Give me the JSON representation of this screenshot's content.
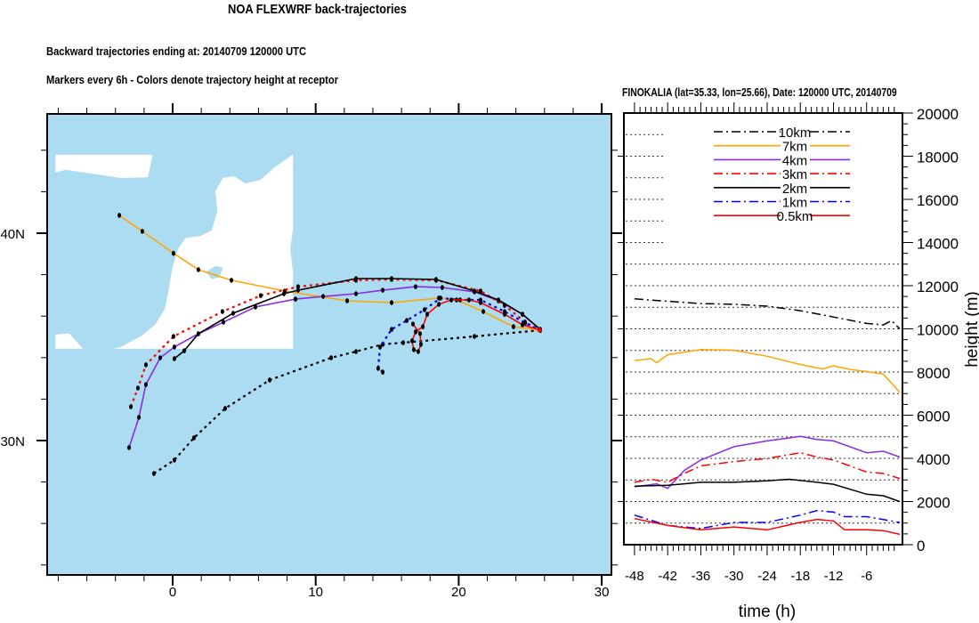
{
  "header": {
    "title": "NOA FLEXWRF back-trajectories",
    "subtitle1": "Backward trajectories ending at: 20140709  120000 UTC",
    "subtitle2": "Markers every 6h - Colors denote trajectory height at receptor"
  },
  "chart_data": [
    {
      "type": "line",
      "subtype": "map-trajectories",
      "title": "NOA FLEXWRF back-trajectories",
      "x_ticks": [
        "0",
        "10",
        "20",
        "30"
      ],
      "x_tick_values": [
        0,
        10,
        20,
        30
      ],
      "y_ticks": [
        "40N",
        "30N"
      ],
      "y_tick_values": [
        40,
        30
      ],
      "xlim": [
        -9,
        30.7
      ],
      "ylim": [
        23.5,
        45.8
      ],
      "receptor": {
        "lon": 25.66,
        "lat": 35.33
      },
      "colors": {
        "sea": "#acdcf1",
        "land": "#ffffff"
      },
      "series": [
        {
          "name": "10km",
          "color": "#000000",
          "style": "dotted",
          "lon": [
            -1.31,
            0.12,
            1.49,
            3.67,
            6.78,
            11.08,
            12.82,
            14.69,
            16.12,
            21.1,
            25.7
          ],
          "lat": [
            28.41,
            29.06,
            30.13,
            31.55,
            32.92,
            33.99,
            34.29,
            34.64,
            34.72,
            35.02,
            35.32
          ]
        },
        {
          "name": "7km",
          "color": "#ffa500",
          "style": "solid",
          "lon": [
            -3.73,
            -2.12,
            0.06,
            1.8,
            4.11,
            7.84,
            12.2,
            15.31,
            18.61,
            19.85,
            21.72,
            23.83,
            25.7
          ],
          "lat": [
            40.86,
            40.09,
            39.03,
            38.24,
            37.73,
            37.21,
            36.74,
            36.65,
            36.87,
            36.78,
            36.22,
            35.49,
            35.32
          ]
        },
        {
          "name": "4km",
          "color": "#8a2be2",
          "style": "solid",
          "lon": [
            -3.05,
            -2.36,
            -1.87,
            -0.87,
            0.12,
            1.8,
            3.55,
            5.79,
            8.59,
            10.52,
            12.82,
            14.69,
            16.99,
            18.85,
            21.1,
            22.78,
            24.46,
            25.7
          ],
          "lat": [
            29.66,
            31.12,
            32.7,
            33.99,
            34.51,
            35.15,
            35.71,
            36.44,
            36.82,
            36.95,
            37.08,
            37.25,
            37.42,
            37.38,
            37.17,
            36.74,
            36.09,
            35.36
          ]
        },
        {
          "name": "3km",
          "color": "#ff0000",
          "style": "dotted",
          "lon": [
            -2.92,
            -2.43,
            -1.87,
            0.06,
            3.48,
            6.16,
            8.77,
            12.82,
            15.31,
            18.42,
            21.53,
            23.21,
            24.64,
            25.7
          ],
          "lat": [
            31.63,
            32.53,
            33.65,
            35.02,
            36.22,
            36.99,
            37.42,
            37.73,
            37.77,
            37.73,
            37.21,
            36.52,
            35.71,
            35.32
          ]
        },
        {
          "name": "2km",
          "color": "#000000",
          "style": "solid",
          "lon": [
            0.12,
            0.81,
            1.8,
            4.23,
            7.78,
            8.77,
            12.82,
            15.31,
            18.42,
            21.1,
            22.78,
            24.46,
            25.7
          ],
          "lat": [
            33.95,
            34.33,
            35.15,
            36.14,
            37.08,
            37.25,
            37.81,
            37.81,
            37.77,
            37.21,
            36.78,
            36.09,
            35.36
          ]
        },
        {
          "name": "1km",
          "color": "#0000ff",
          "style": "dotted",
          "lon": [
            14.69,
            14.37,
            14.5,
            15.31,
            16.37,
            17.61,
            18.73,
            20.1,
            21.53,
            23.21,
            24.64,
            25.7
          ],
          "lat": [
            33.3,
            33.48,
            34.51,
            35.36,
            35.79,
            36.31,
            36.87,
            36.78,
            36.78,
            36.22,
            35.67,
            35.32
          ]
        },
        {
          "name": "0.5km",
          "color": "#ff0000",
          "style": "solid",
          "lon": [
            16.8,
            17.3,
            17.36,
            17.17,
            16.86,
            16.74,
            16.99,
            17.49,
            17.8,
            18.61,
            19.48,
            20.72,
            21.53,
            23.21,
            24.46,
            25.7
          ],
          "lat": [
            35.62,
            35.15,
            34.64,
            34.29,
            34.38,
            34.81,
            35.24,
            35.49,
            36.09,
            36.57,
            36.78,
            36.78,
            36.65,
            36.09,
            35.58,
            35.32
          ]
        }
      ]
    },
    {
      "type": "line",
      "title": "FINOKALIA (lat=35.33,  lon=25.66), Date: 120000 UTC, 20140709",
      "xlabel": "time (h)",
      "ylabel": "height (m)",
      "xlim": [
        -50,
        0
      ],
      "ylim": [
        0,
        20000
      ],
      "x_ticks": [
        "-48",
        "-42",
        "-36",
        "-30",
        "-24",
        "-18",
        "-12",
        "-6"
      ],
      "x_tick_values": [
        -48,
        -42,
        -36,
        -30,
        -24,
        -18,
        -12,
        -6
      ],
      "y_ticks": [
        "0",
        "2000",
        "4000",
        "6000",
        "8000",
        "10000",
        "12000",
        "14000",
        "16000",
        "18000",
        "20000"
      ],
      "y_tick_values": [
        0,
        2000,
        4000,
        6000,
        8000,
        10000,
        12000,
        14000,
        16000,
        18000,
        20000
      ],
      "grid": "dotted horizontal every 1000",
      "legend_position": "top-center",
      "series": [
        {
          "name": "10km",
          "color": "#000000",
          "style": "dashdot",
          "x": [
            -48,
            -42,
            -36,
            -30,
            -24,
            -18,
            -12,
            -6,
            -3,
            -1.5,
            0
          ],
          "y": [
            11390,
            11280,
            11170,
            11140,
            11050,
            10840,
            10550,
            10250,
            10180,
            10380,
            10000
          ]
        },
        {
          "name": "7km",
          "color": "#ffa500",
          "style": "solid",
          "x": [
            -48,
            -45,
            -44,
            -42,
            -36,
            -30,
            -24,
            -18,
            -14,
            -12,
            -9,
            -6,
            -3,
            0
          ],
          "y": [
            8530,
            8620,
            8430,
            8800,
            9040,
            9010,
            8730,
            8350,
            8140,
            8290,
            8120,
            8020,
            7910,
            7060
          ]
        },
        {
          "name": "4km",
          "color": "#8a2be2",
          "style": "solid",
          "x": [
            -48,
            -44,
            -42,
            -39,
            -36,
            -30,
            -24,
            -18,
            -15,
            -12,
            -6,
            -3,
            0
          ],
          "y": [
            2680,
            2820,
            2610,
            3440,
            3920,
            4540,
            4810,
            5020,
            4880,
            4810,
            4260,
            4330,
            4060
          ]
        },
        {
          "name": "3km",
          "color": "#ff0000",
          "style": "dashdot",
          "x": [
            -48,
            -45,
            -42,
            -39,
            -36,
            -30,
            -24,
            -18,
            -15,
            -12,
            -6,
            -3,
            0
          ],
          "y": [
            2890,
            3030,
            2890,
            3300,
            3650,
            3850,
            3990,
            4260,
            4060,
            3920,
            3370,
            3300,
            3070
          ]
        },
        {
          "name": "2km",
          "color": "#000000",
          "style": "solid",
          "x": [
            -48,
            -42,
            -36,
            -30,
            -24,
            -20,
            -15,
            -12,
            -6,
            -3,
            0
          ],
          "y": [
            2710,
            2750,
            2890,
            2890,
            2960,
            3030,
            2890,
            2800,
            2340,
            2270,
            2000
          ]
        },
        {
          "name": "1km",
          "color": "#0000ff",
          "style": "dashdot",
          "x": [
            -48,
            -42,
            -36,
            -30,
            -24,
            -18,
            -15,
            -12,
            -10,
            -6,
            0
          ],
          "y": [
            1370,
            890,
            750,
            1030,
            1030,
            1370,
            1580,
            1510,
            1300,
            1300,
            1030
          ]
        },
        {
          "name": "0.5km",
          "color": "#ff0000",
          "style": "solid",
          "x": [
            -48,
            -42,
            -36,
            -30,
            -24,
            -18,
            -15,
            -12,
            -10,
            -6,
            -3,
            0
          ],
          "y": [
            1210,
            890,
            690,
            820,
            690,
            1030,
            1170,
            1100,
            690,
            690,
            650,
            480
          ]
        }
      ]
    }
  ]
}
